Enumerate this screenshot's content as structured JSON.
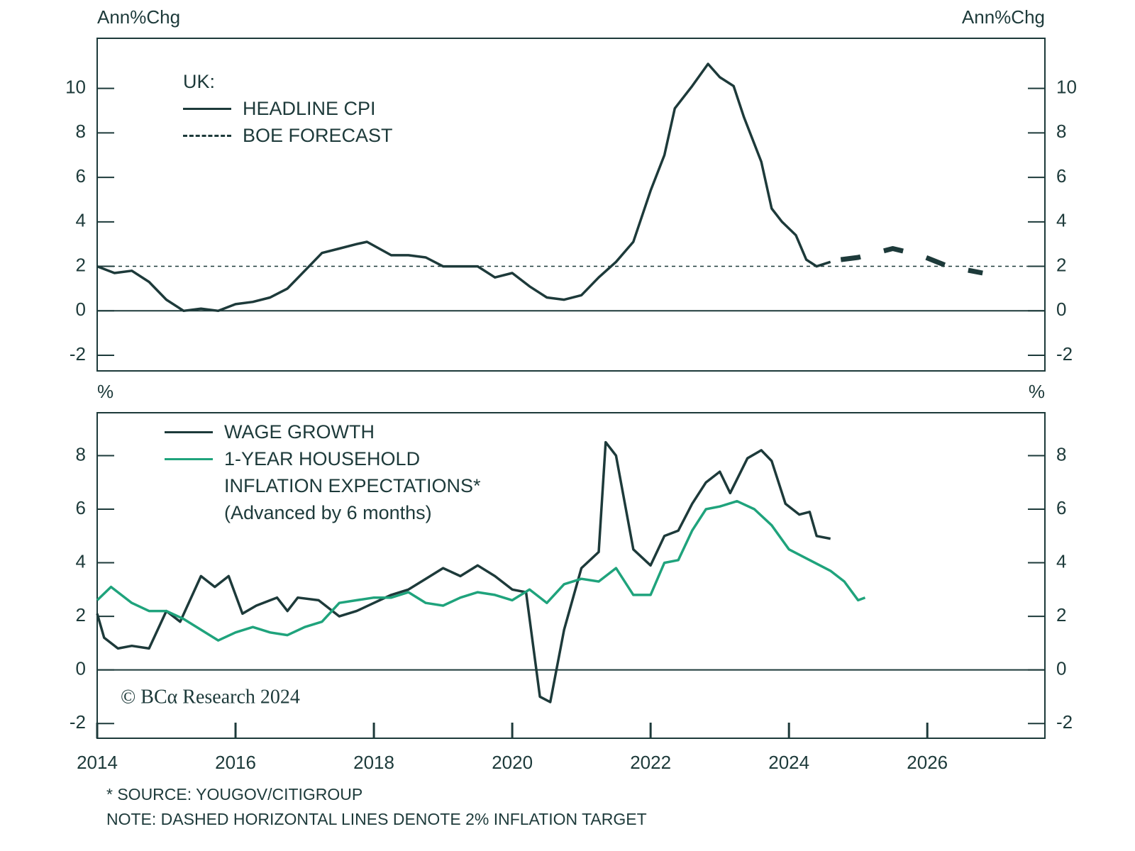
{
  "chart_data": [
    {
      "type": "line",
      "y_label": "Ann%Chg",
      "legend_title": "UK:",
      "xlim": [
        2014,
        2027.7
      ],
      "ylim": [
        -2.7,
        12.25
      ],
      "yticks": [
        -2,
        0,
        2,
        4,
        6,
        8,
        10
      ],
      "reference_line": 2,
      "series": [
        {
          "name": "HEADLINE CPI",
          "color": "#1d3a3a",
          "dashed": false,
          "x": [
            2014.0,
            2014.25,
            2014.5,
            2014.75,
            2015.0,
            2015.25,
            2015.5,
            2015.75,
            2016.0,
            2016.25,
            2016.5,
            2016.75,
            2017.0,
            2017.25,
            2017.5,
            2017.75,
            2017.9,
            2018.25,
            2018.5,
            2018.75,
            2019.0,
            2019.25,
            2019.5,
            2019.75,
            2020.0,
            2020.25,
            2020.5,
            2020.75,
            2021.0,
            2021.25,
            2021.5,
            2021.75,
            2022.0,
            2022.2,
            2022.35,
            2022.6,
            2022.83,
            2023.0,
            2023.2,
            2023.35,
            2023.6,
            2023.75,
            2023.9,
            2024.1,
            2024.25,
            2024.4,
            2024.6
          ],
          "values": [
            2.0,
            1.7,
            1.8,
            1.3,
            0.5,
            0.0,
            0.1,
            0.0,
            0.3,
            0.4,
            0.6,
            1.0,
            1.8,
            2.6,
            2.8,
            3.0,
            3.1,
            2.5,
            2.5,
            2.4,
            2.0,
            2.0,
            2.0,
            1.5,
            1.7,
            1.1,
            0.6,
            0.5,
            0.7,
            1.5,
            2.2,
            3.1,
            5.4,
            7.0,
            9.1,
            10.1,
            11.1,
            10.5,
            10.1,
            8.7,
            6.7,
            4.6,
            4.0,
            3.4,
            2.3,
            2.0,
            2.2
          ]
        },
        {
          "name": "BOE FORECAST",
          "color": "#1d3a3a",
          "dashed": true,
          "x": [
            2024.75,
            2025.0,
            2025.5,
            2025.9,
            2026.3,
            2026.8
          ],
          "values": [
            2.3,
            2.4,
            2.8,
            2.5,
            2.0,
            1.7
          ]
        }
      ]
    },
    {
      "type": "line",
      "y_label": "%",
      "xlim": [
        2014,
        2027.7
      ],
      "ylim": [
        -2.55,
        9.6
      ],
      "yticks": [
        -2,
        0,
        2,
        4,
        6,
        8
      ],
      "xticks": [
        2014,
        2016,
        2018,
        2020,
        2022,
        2024,
        2026
      ],
      "legend_note": "(Advanced by 6 months)",
      "series": [
        {
          "name": "WAGE GROWTH",
          "color": "#1d3a3a",
          "dashed": false,
          "x": [
            2014.0,
            2014.1,
            2014.3,
            2014.5,
            2014.75,
            2015.0,
            2015.2,
            2015.5,
            2015.7,
            2015.9,
            2016.1,
            2016.3,
            2016.6,
            2016.75,
            2016.9,
            2017.2,
            2017.5,
            2017.75,
            2018.0,
            2018.25,
            2018.5,
            2018.75,
            2019.0,
            2019.25,
            2019.5,
            2019.75,
            2020.0,
            2020.2,
            2020.4,
            2020.55,
            2020.75,
            2021.0,
            2021.25,
            2021.35,
            2021.5,
            2021.75,
            2022.0,
            2022.2,
            2022.4,
            2022.6,
            2022.8,
            2023.0,
            2023.15,
            2023.4,
            2023.6,
            2023.75,
            2023.95,
            2024.15,
            2024.3,
            2024.4,
            2024.6
          ],
          "values": [
            2.1,
            1.2,
            0.8,
            0.9,
            0.8,
            2.2,
            1.8,
            3.5,
            3.1,
            3.5,
            2.1,
            2.4,
            2.7,
            2.2,
            2.7,
            2.6,
            2.0,
            2.2,
            2.5,
            2.8,
            3.0,
            3.4,
            3.8,
            3.5,
            3.9,
            3.5,
            3.0,
            2.9,
            -1.0,
            -1.2,
            1.5,
            3.8,
            4.4,
            8.5,
            8.0,
            4.5,
            3.9,
            5.0,
            5.2,
            6.2,
            7.0,
            7.4,
            6.6,
            7.9,
            8.2,
            7.8,
            6.2,
            5.8,
            5.9,
            5.0,
            4.9
          ]
        },
        {
          "name": "1-YEAR HOUSEHOLD\nINFLATION EXPECTATIONS*",
          "color": "#1fa37c",
          "dashed": false,
          "x": [
            2014.0,
            2014.2,
            2014.5,
            2014.75,
            2015.0,
            2015.25,
            2015.5,
            2015.75,
            2016.0,
            2016.25,
            2016.5,
            2016.75,
            2017.0,
            2017.25,
            2017.5,
            2017.75,
            2018.0,
            2018.25,
            2018.5,
            2018.75,
            2019.0,
            2019.25,
            2019.5,
            2019.75,
            2020.0,
            2020.25,
            2020.5,
            2020.75,
            2021.0,
            2021.25,
            2021.5,
            2021.75,
            2022.0,
            2022.2,
            2022.4,
            2022.6,
            2022.8,
            2023.0,
            2023.25,
            2023.5,
            2023.75,
            2024.0,
            2024.3,
            2024.6,
            2024.8,
            2025.0,
            2025.1
          ],
          "values": [
            2.6,
            3.1,
            2.5,
            2.2,
            2.2,
            1.9,
            1.5,
            1.1,
            1.4,
            1.6,
            1.4,
            1.3,
            1.6,
            1.8,
            2.5,
            2.6,
            2.7,
            2.7,
            2.9,
            2.5,
            2.4,
            2.7,
            2.9,
            2.8,
            2.6,
            3.0,
            2.5,
            3.2,
            3.4,
            3.3,
            3.8,
            2.8,
            2.8,
            4.0,
            4.1,
            5.2,
            6.0,
            6.1,
            6.3,
            6.0,
            5.4,
            4.5,
            4.1,
            3.7,
            3.3,
            2.6,
            2.7
          ]
        }
      ]
    }
  ],
  "watermark": "© BCα Research 2024",
  "notes": [
    "* SOURCE: YOUGOV/CITIGROUP",
    "NOTE: DASHED HORIZONTAL LINES DENOTE 2% INFLATION TARGET"
  ]
}
